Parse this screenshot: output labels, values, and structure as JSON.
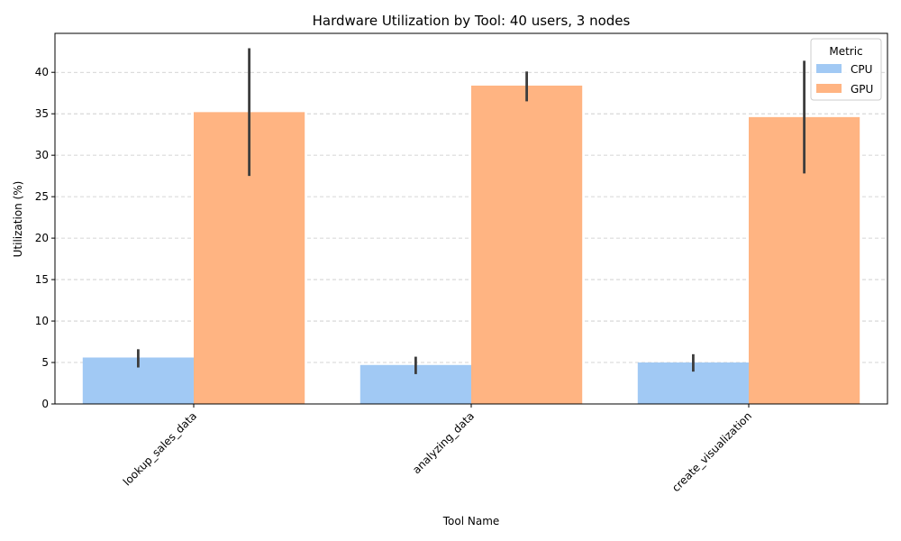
{
  "chart_data": {
    "type": "bar",
    "title": "Hardware Utilization by Tool: 40 users, 3 nodes",
    "xlabel": "Tool Name",
    "ylabel": "Utilization (%)",
    "categories": [
      "lookup_sales_data",
      "analyzing_data",
      "create_visualization"
    ],
    "series": [
      {
        "name": "CPU",
        "color": "#a1c9f4",
        "values": [
          5.6,
          4.7,
          5.0
        ],
        "err_low": [
          4.4,
          3.6,
          3.9
        ],
        "err_high": [
          6.6,
          5.7,
          6.0
        ]
      },
      {
        "name": "GPU",
        "color": "#ffb482",
        "values": [
          35.2,
          38.4,
          34.6
        ],
        "err_low": [
          27.5,
          36.5,
          27.8
        ],
        "err_high": [
          42.9,
          40.1,
          41.4
        ]
      }
    ],
    "ylim": [
      0,
      44.7
    ],
    "yticks": [
      0,
      5,
      10,
      15,
      20,
      25,
      30,
      35,
      40
    ],
    "grid": "y-dashed",
    "legend": {
      "title": "Metric",
      "placement": "top-right"
    },
    "xtick_rotation": 45
  }
}
